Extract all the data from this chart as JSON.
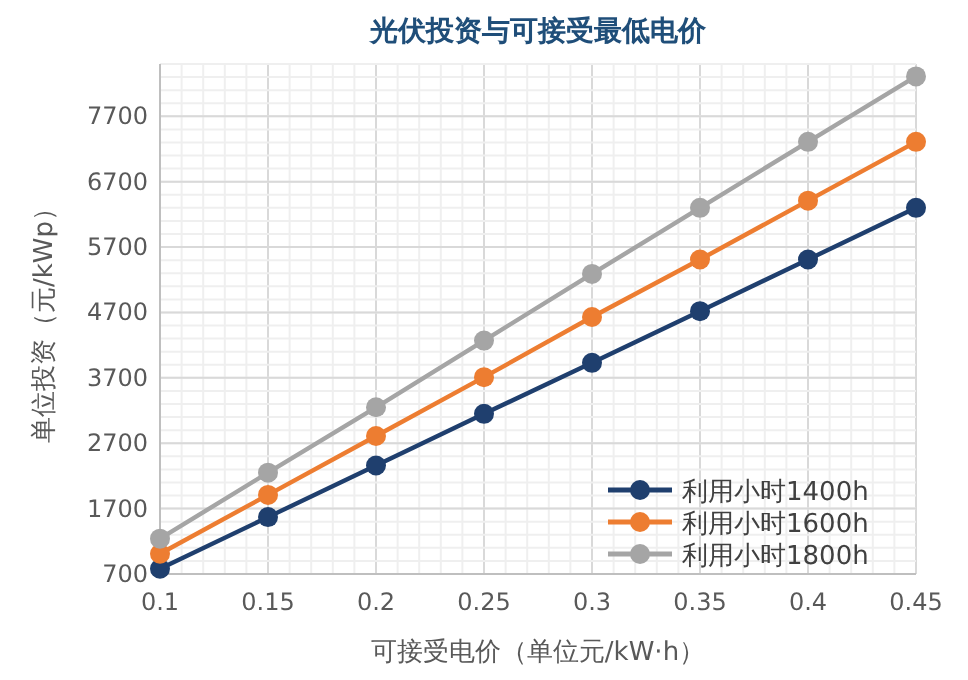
{
  "chart_data": {
    "type": "line",
    "title": "光伏投资与可接受最低电价",
    "xlabel": "可接受电价（单位元/kW·h）",
    "ylabel": "单位投资（元/kWp）",
    "x": [
      0.1,
      0.15,
      0.2,
      0.25,
      0.3,
      0.35,
      0.4,
      0.45
    ],
    "xlim": [
      0.1,
      0.45
    ],
    "xticks": [
      0.1,
      0.15,
      0.2,
      0.25,
      0.3,
      0.35,
      0.4,
      0.45
    ],
    "ylim": [
      700,
      8500
    ],
    "yticks": [
      700,
      1700,
      2700,
      3700,
      4700,
      5700,
      6700,
      7700
    ],
    "grid": true,
    "legend": "bottom right",
    "marker": "circle",
    "line_style": "solid",
    "series": [
      {
        "name": "利用小时1400h",
        "color": "#1f3f6e",
        "values": [
          780,
          1570,
          2360,
          3150,
          3930,
          4720,
          5510,
          6300
        ]
      },
      {
        "name": "利用小时1600h",
        "color": "#ed7d31",
        "values": [
          1010,
          1910,
          2810,
          3710,
          4630,
          5510,
          6410,
          7310
        ]
      },
      {
        "name": "利用小时1800h",
        "color": "#a5a5a5",
        "values": [
          1240,
          2250,
          3250,
          4270,
          5290,
          6300,
          7310,
          8310
        ]
      }
    ]
  }
}
